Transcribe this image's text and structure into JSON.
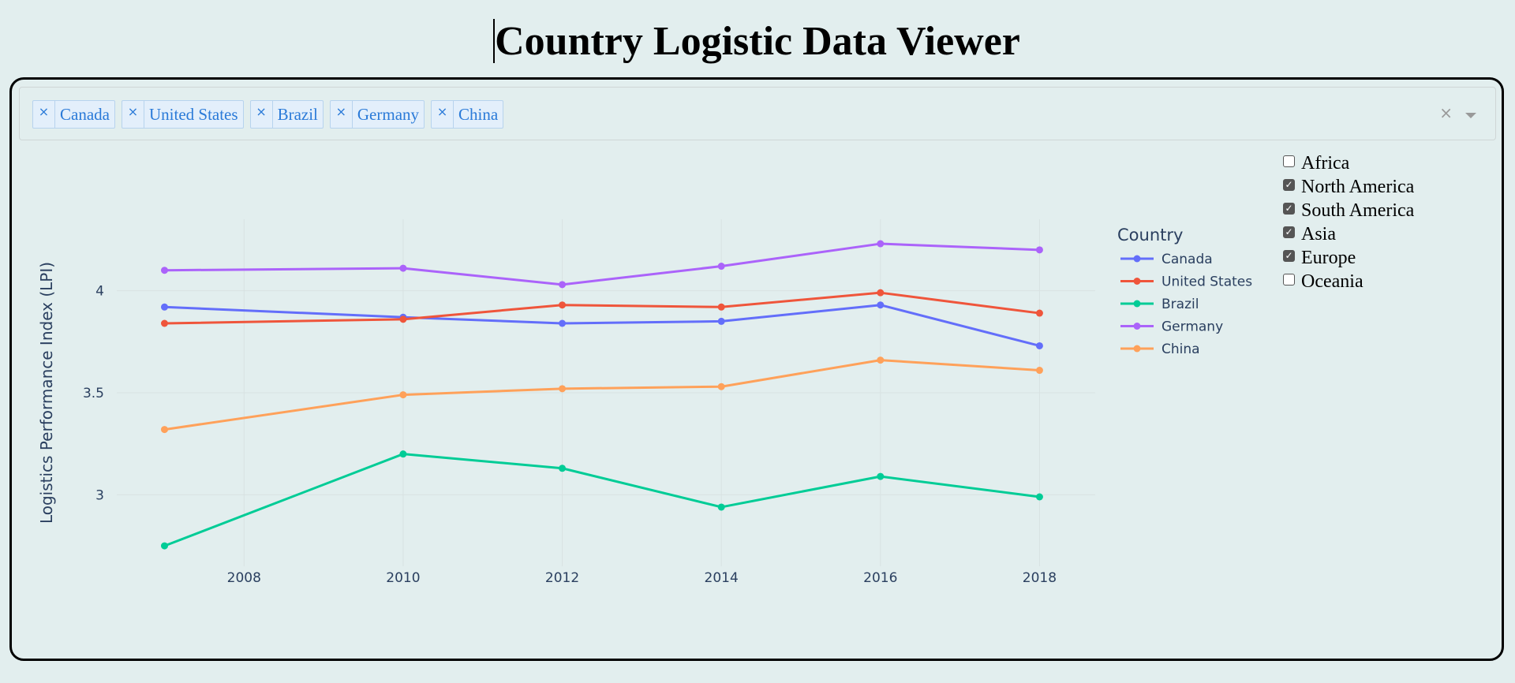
{
  "header": {
    "title": "Country Logistic Data Viewer"
  },
  "dropdown": {
    "selected": [
      "Canada",
      "United States",
      "Brazil",
      "Germany",
      "China"
    ],
    "remove_glyph": "×",
    "clear_glyph": "×"
  },
  "regions": [
    {
      "label": "Africa",
      "checked": false
    },
    {
      "label": "North America",
      "checked": true
    },
    {
      "label": "South America",
      "checked": true
    },
    {
      "label": "Asia",
      "checked": true
    },
    {
      "label": "Europe",
      "checked": true
    },
    {
      "label": "Oceania",
      "checked": false
    }
  ],
  "chart_data": {
    "type": "line",
    "title": "",
    "xlabel": "",
    "ylabel": "Logistics Performance Index (LPI)",
    "legend_title": "Country",
    "legend_position": "right",
    "grid": true,
    "x": [
      2007,
      2010,
      2012,
      2014,
      2016,
      2018
    ],
    "xticks": [
      2008,
      2010,
      2012,
      2014,
      2016,
      2018
    ],
    "yticks": [
      3,
      3.5,
      4
    ],
    "xlim": [
      2006.4,
      2018.7
    ],
    "ylim": [
      2.65,
      4.35
    ],
    "series": [
      {
        "name": "Canada",
        "color": "#636efa",
        "values": [
          3.92,
          3.87,
          3.84,
          3.85,
          3.93,
          3.73
        ]
      },
      {
        "name": "United States",
        "color": "#ef553b",
        "values": [
          3.84,
          3.86,
          3.93,
          3.92,
          3.99,
          3.89
        ]
      },
      {
        "name": "Brazil",
        "color": "#00cc96",
        "values": [
          2.75,
          3.2,
          3.13,
          2.94,
          3.09,
          2.99
        ]
      },
      {
        "name": "Germany",
        "color": "#ab63fa",
        "values": [
          4.1,
          4.11,
          4.03,
          4.12,
          4.23,
          4.2
        ]
      },
      {
        "name": "China",
        "color": "#ffa15a",
        "values": [
          3.32,
          3.49,
          3.52,
          3.53,
          3.66,
          3.61
        ]
      }
    ]
  }
}
